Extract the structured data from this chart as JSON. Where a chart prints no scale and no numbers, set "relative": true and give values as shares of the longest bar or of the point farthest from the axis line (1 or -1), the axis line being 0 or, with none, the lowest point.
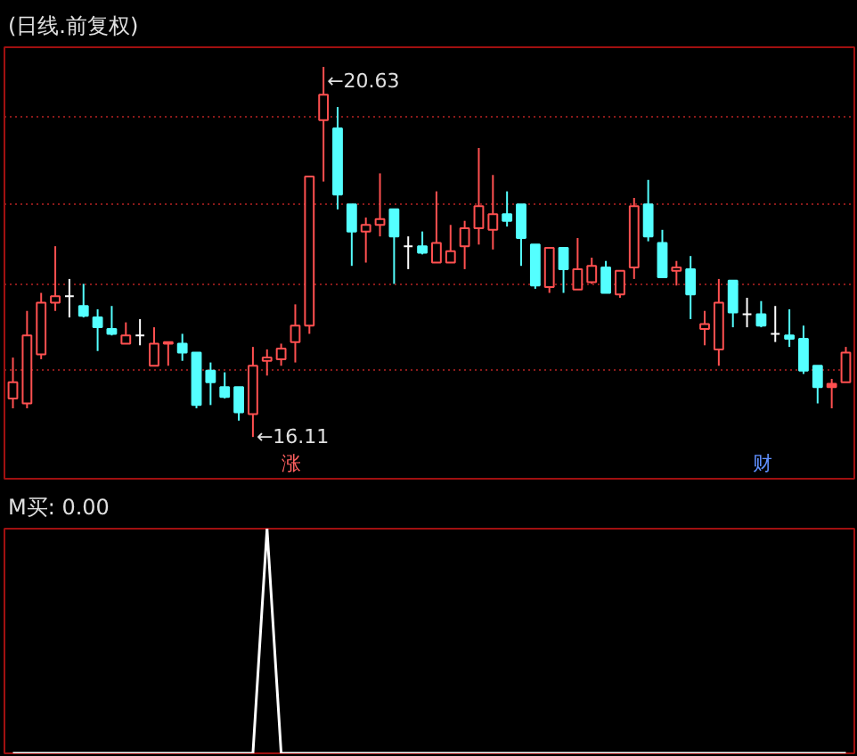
{
  "chart_data": [
    {
      "type": "candlestick",
      "title": "(日线.前复权)",
      "categories": [
        null,
        null,
        null,
        null,
        null,
        null,
        null,
        null,
        null,
        null,
        null,
        null,
        null,
        null,
        null,
        null,
        null,
        null,
        null,
        null,
        null,
        null,
        null,
        null,
        null,
        null,
        null,
        null,
        null,
        null,
        null,
        null,
        null,
        null,
        null,
        null,
        null,
        null,
        null,
        null,
        null,
        null,
        null,
        null,
        null,
        null,
        null,
        null,
        null,
        null,
        null,
        null,
        null,
        null,
        null,
        null,
        null,
        null,
        null,
        null
      ],
      "ohlc": [
        [
          16.58,
          17.08,
          16.46,
          16.78
        ],
        [
          16.52,
          17.65,
          16.46,
          17.35
        ],
        [
          17.12,
          17.87,
          17.06,
          17.75
        ],
        [
          17.75,
          18.44,
          17.65,
          17.83
        ],
        [
          17.83,
          18.04,
          17.57,
          17.83
        ],
        [
          17.71,
          17.98,
          17.57,
          17.59
        ],
        [
          17.57,
          17.67,
          17.16,
          17.45
        ],
        [
          17.43,
          17.71,
          17.35,
          17.37
        ],
        [
          17.25,
          17.51,
          17.25,
          17.35
        ],
        [
          17.35,
          17.55,
          17.23,
          17.35
        ],
        [
          16.98,
          17.45,
          16.98,
          17.25
        ],
        [
          17.25,
          17.27,
          16.98,
          17.27
        ],
        [
          17.25,
          17.37,
          17.04,
          17.14
        ],
        [
          17.14,
          17.14,
          16.46,
          16.5
        ],
        [
          16.92,
          17.02,
          16.5,
          16.78
        ],
        [
          16.72,
          16.9,
          16.58,
          16.6
        ],
        [
          16.72,
          16.72,
          16.31,
          16.41
        ],
        [
          16.39,
          17.21,
          16.11,
          16.98
        ],
        [
          17.04,
          17.18,
          16.86,
          17.08
        ],
        [
          17.06,
          17.25,
          16.98,
          17.19
        ],
        [
          17.27,
          17.73,
          17.02,
          17.47
        ],
        [
          17.47,
          19.29,
          17.37,
          19.29
        ],
        [
          19.98,
          20.63,
          19.23,
          20.29
        ],
        [
          19.88,
          20.14,
          18.89,
          19.07
        ],
        [
          18.95,
          18.95,
          18.2,
          18.62
        ],
        [
          18.62,
          18.79,
          18.24,
          18.7
        ],
        [
          18.7,
          19.33,
          18.56,
          18.77
        ],
        [
          18.89,
          18.89,
          17.98,
          18.56
        ],
        [
          18.44,
          18.56,
          18.16,
          18.44
        ],
        [
          18.44,
          18.62,
          18.34,
          18.36
        ],
        [
          18.24,
          19.11,
          18.24,
          18.48
        ],
        [
          18.24,
          18.7,
          18.24,
          18.38
        ],
        [
          18.44,
          18.75,
          18.16,
          18.66
        ],
        [
          18.66,
          19.64,
          18.46,
          18.93
        ],
        [
          18.64,
          19.31,
          18.4,
          18.83
        ],
        [
          18.83,
          19.11,
          18.68,
          18.75
        ],
        [
          18.95,
          18.95,
          18.2,
          18.54
        ],
        [
          18.46,
          18.46,
          17.92,
          17.96
        ],
        [
          17.94,
          18.42,
          17.87,
          18.42
        ],
        [
          18.42,
          18.42,
          17.87,
          18.16
        ],
        [
          17.91,
          18.54,
          17.91,
          18.16
        ],
        [
          18.0,
          18.3,
          17.98,
          18.2
        ],
        [
          18.18,
          18.26,
          17.87,
          17.87
        ],
        [
          17.85,
          18.14,
          17.81,
          18.14
        ],
        [
          18.18,
          19.03,
          18.04,
          18.93
        ],
        [
          18.95,
          19.25,
          18.5,
          18.56
        ],
        [
          18.48,
          18.64,
          18.06,
          18.06
        ],
        [
          18.14,
          18.26,
          17.96,
          18.18
        ],
        [
          18.16,
          18.32,
          17.55,
          17.85
        ],
        [
          17.43,
          17.65,
          17.23,
          17.49
        ],
        [
          17.18,
          18.04,
          16.98,
          17.75
        ],
        [
          18.02,
          18.02,
          17.45,
          17.63
        ],
        [
          17.61,
          17.81,
          17.45,
          17.61
        ],
        [
          17.61,
          17.77,
          17.45,
          17.47
        ],
        [
          17.37,
          17.71,
          17.27,
          17.37
        ],
        [
          17.35,
          17.67,
          17.21,
          17.31
        ],
        [
          17.31,
          17.47,
          16.88,
          16.92
        ],
        [
          16.98,
          16.98,
          16.52,
          16.72
        ],
        [
          16.76,
          16.82,
          16.46,
          16.72
        ],
        [
          16.78,
          17.21,
          16.78,
          17.14
        ]
      ],
      "colors": [
        "#ff5050",
        "#ff5050",
        "#ff5050",
        "#ff5050",
        "#ffffff",
        "#54ffff",
        "#54ffff",
        "#54ffff",
        "#ff5050",
        "#ffffff",
        "#ff5050",
        "#ff5050",
        "#54ffff",
        "#54ffff",
        "#54ffff",
        "#54ffff",
        "#54ffff",
        "#ff5050",
        "#ff5050",
        "#ff5050",
        "#ff5050",
        "#ff5050",
        "#ff5050",
        "#54ffff",
        "#54ffff",
        "#ff5050",
        "#ff5050",
        "#54ffff",
        "#ffffff",
        "#54ffff",
        "#ff5050",
        "#ff5050",
        "#ff5050",
        "#ff5050",
        "#ff5050",
        "#54ffff",
        "#54ffff",
        "#54ffff",
        "#ff5050",
        "#54ffff",
        "#ff5050",
        "#ff5050",
        "#54ffff",
        "#ff5050",
        "#ff5050",
        "#54ffff",
        "#54ffff",
        "#ff5050",
        "#54ffff",
        "#ff5050",
        "#ff5050",
        "#54ffff",
        "#ffffff",
        "#54ffff",
        "#ffffff",
        "#54ffff",
        "#54ffff",
        "#54ffff",
        "#ff5050",
        "#ff5050"
      ],
      "ylim": [
        15.6,
        20.87
      ],
      "yticks": [
        {
          "value": 16.92,
          "label": null
        },
        {
          "value": 17.97,
          "label": null
        },
        {
          "value": 18.95,
          "label": null
        },
        {
          "value": 20.02,
          "label": null
        }
      ],
      "grid": "y",
      "tick_labels": false,
      "annotations": [
        "←20.63",
        "←16.11",
        "涨",
        "财"
      ]
    },
    {
      "type": "line",
      "title": "M买: 0.00",
      "relative": true,
      "color": "#ffffff",
      "tick_labels": false,
      "categories": [
        null,
        null,
        null,
        null,
        null,
        null,
        null,
        null,
        null,
        null,
        null,
        null,
        null,
        null,
        null,
        null,
        null,
        null,
        null,
        null,
        null,
        null,
        null,
        null,
        null,
        null,
        null,
        null,
        null,
        null,
        null,
        null,
        null,
        null,
        null,
        null,
        null,
        null,
        null,
        null,
        null,
        null,
        null,
        null,
        null,
        null,
        null,
        null,
        null,
        null,
        null,
        null,
        null,
        null,
        null,
        null,
        null,
        null,
        null,
        null
      ],
      "values": [
        0,
        0,
        0,
        0,
        0,
        0,
        0,
        0,
        0,
        0,
        0,
        0,
        0,
        0,
        0,
        0,
        0,
        0,
        1,
        0,
        0,
        0,
        0,
        0,
        0,
        0,
        0,
        0,
        0,
        0,
        0,
        0,
        0,
        0,
        0,
        0,
        0,
        0,
        0,
        0,
        0,
        0,
        0,
        0,
        0,
        0,
        0,
        0,
        0,
        0,
        0,
        0,
        0,
        0,
        0,
        0,
        0,
        0,
        0,
        0
      ]
    }
  ]
}
